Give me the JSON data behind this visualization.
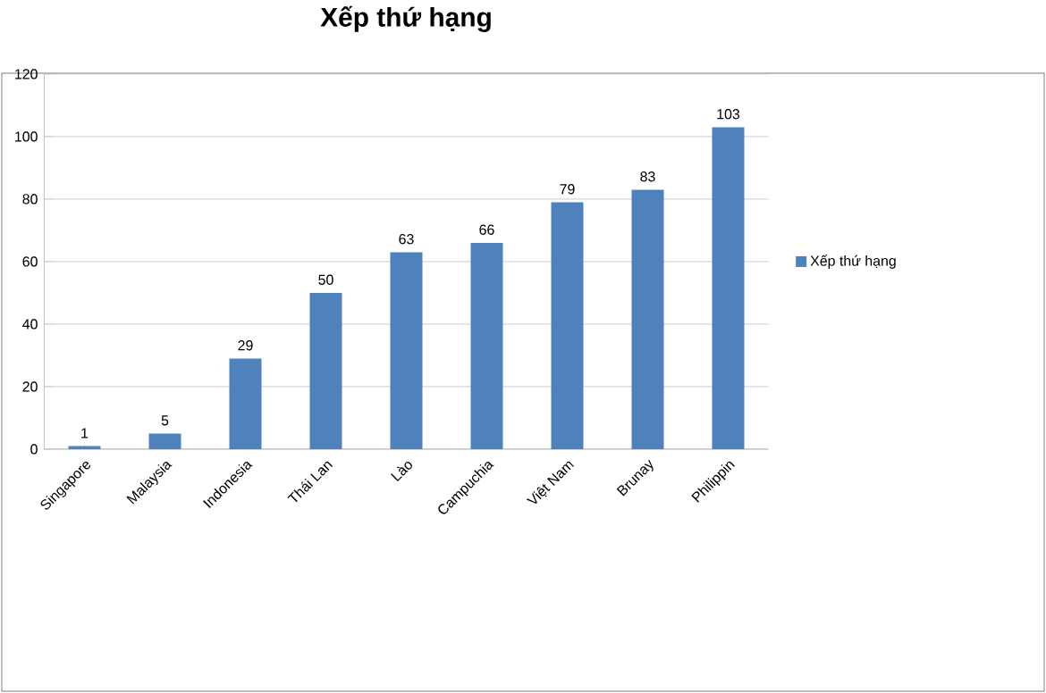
{
  "chart_data": {
    "type": "bar",
    "title": "Xếp thứ hạng",
    "categories": [
      "Singapore",
      "Malaysia",
      "Indonesia",
      "Thái Lan",
      "Lào",
      "Campuchia",
      "Việt Nam",
      "Brunay",
      "Philippin"
    ],
    "series": [
      {
        "name": "Xếp thứ hạng",
        "color": "#4f81bd",
        "values": [
          1,
          5,
          29,
          50,
          63,
          66,
          79,
          83,
          103
        ]
      }
    ],
    "ylim": [
      0,
      120
    ],
    "yticks": [
      0,
      20,
      40,
      60,
      80,
      100,
      120
    ],
    "grid": "y",
    "legend": "right",
    "data_labels": true
  }
}
